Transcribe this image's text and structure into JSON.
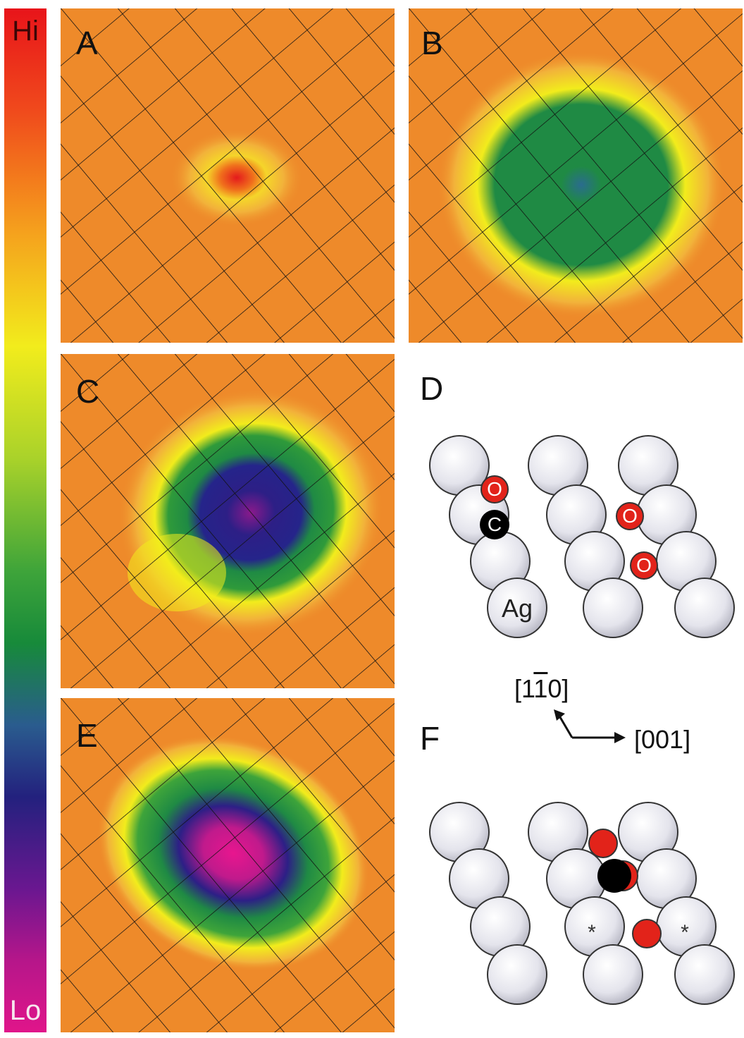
{
  "colorbar": {
    "hi_label": "Hi",
    "lo_label": "Lo"
  },
  "panels": [
    {
      "id": "A",
      "label": "A"
    },
    {
      "id": "B",
      "label": "B"
    },
    {
      "id": "C",
      "label": "C"
    },
    {
      "id": "E",
      "label": "E"
    }
  ],
  "diagrams": {
    "D": {
      "label": "D",
      "atom_ag": "Ag",
      "atom_c": "C",
      "atom_o": "O"
    },
    "F": {
      "label": "F",
      "site_mark": "*"
    }
  },
  "axes": {
    "vertical": "[1̄10]",
    "vertical_main": "[1",
    "vertical_bar": "1",
    "vertical_end": "0]",
    "horizontal": "[001]"
  },
  "colors": {
    "ag": "#e4e4ec",
    "oxygen": "#e2231a",
    "carbon": "#000000",
    "background": "#ee8a2a"
  }
}
